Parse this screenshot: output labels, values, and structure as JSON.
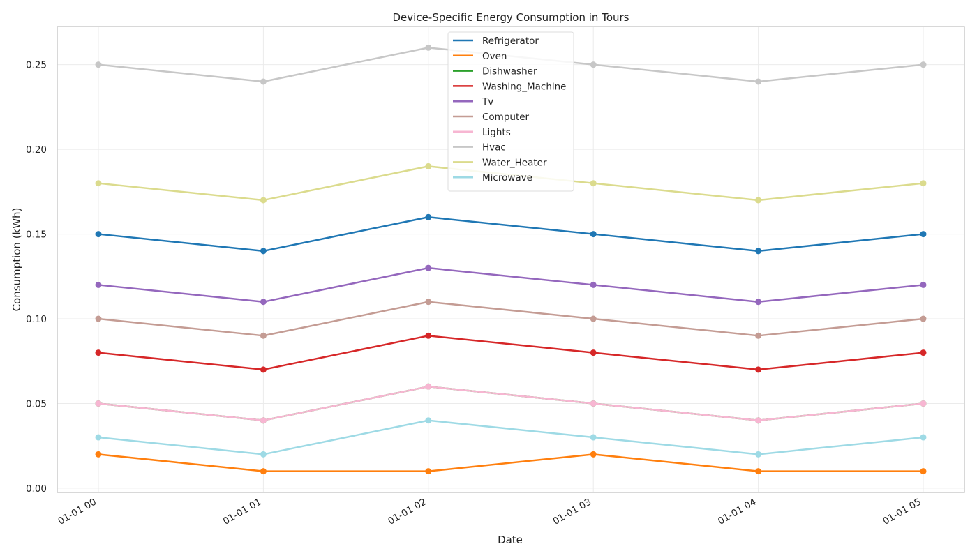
{
  "chart_data": {
    "type": "line",
    "title": "Device-Specific Energy Consumption in Tours",
    "xlabel": "Date",
    "ylabel": "Consumption (kWh)",
    "x": [
      "01-01 00",
      "01-01 01",
      "01-01 02",
      "01-01 03",
      "01-01 04",
      "01-01 05"
    ],
    "yticks": [
      "0.00",
      "0.05",
      "0.10",
      "0.15",
      "0.20",
      "0.25"
    ],
    "ylim": [
      -0.0025,
      0.2725
    ],
    "grid": true,
    "legend_position": "top-center",
    "series": [
      {
        "name": "Refrigerator",
        "color": "#1f77b4",
        "values": [
          0.15,
          0.14,
          0.16,
          0.15,
          0.14,
          0.15
        ]
      },
      {
        "name": "Oven",
        "color": "#ff7f0e",
        "values": [
          0.02,
          0.01,
          0.01,
          0.02,
          0.01,
          0.01
        ]
      },
      {
        "name": "Dishwasher",
        "color": "#2ca02c",
        "values": [
          0.05,
          0.04,
          0.06,
          0.05,
          0.04,
          0.05
        ]
      },
      {
        "name": "Washing_Machine",
        "color": "#d62728",
        "values": [
          0.08,
          0.07,
          0.09,
          0.08,
          0.07,
          0.08
        ]
      },
      {
        "name": "Tv",
        "color": "#9467bd",
        "values": [
          0.12,
          0.11,
          0.13,
          0.12,
          0.11,
          0.12
        ]
      },
      {
        "name": "Computer",
        "color": "#c49c94",
        "values": [
          0.1,
          0.09,
          0.11,
          0.1,
          0.09,
          0.1
        ]
      },
      {
        "name": "Lights",
        "color": "#f7b6d2",
        "values": [
          0.05,
          0.04,
          0.06,
          0.05,
          0.04,
          0.05
        ]
      },
      {
        "name": "Hvac",
        "color": "#c7c7c7",
        "values": [
          0.25,
          0.24,
          0.26,
          0.25,
          0.24,
          0.25
        ]
      },
      {
        "name": "Water_Heater",
        "color": "#dbdb8d",
        "values": [
          0.18,
          0.17,
          0.19,
          0.18,
          0.17,
          0.18
        ]
      },
      {
        "name": "Microwave",
        "color": "#9edae5",
        "values": [
          0.03,
          0.02,
          0.04,
          0.03,
          0.02,
          0.03
        ]
      }
    ]
  }
}
